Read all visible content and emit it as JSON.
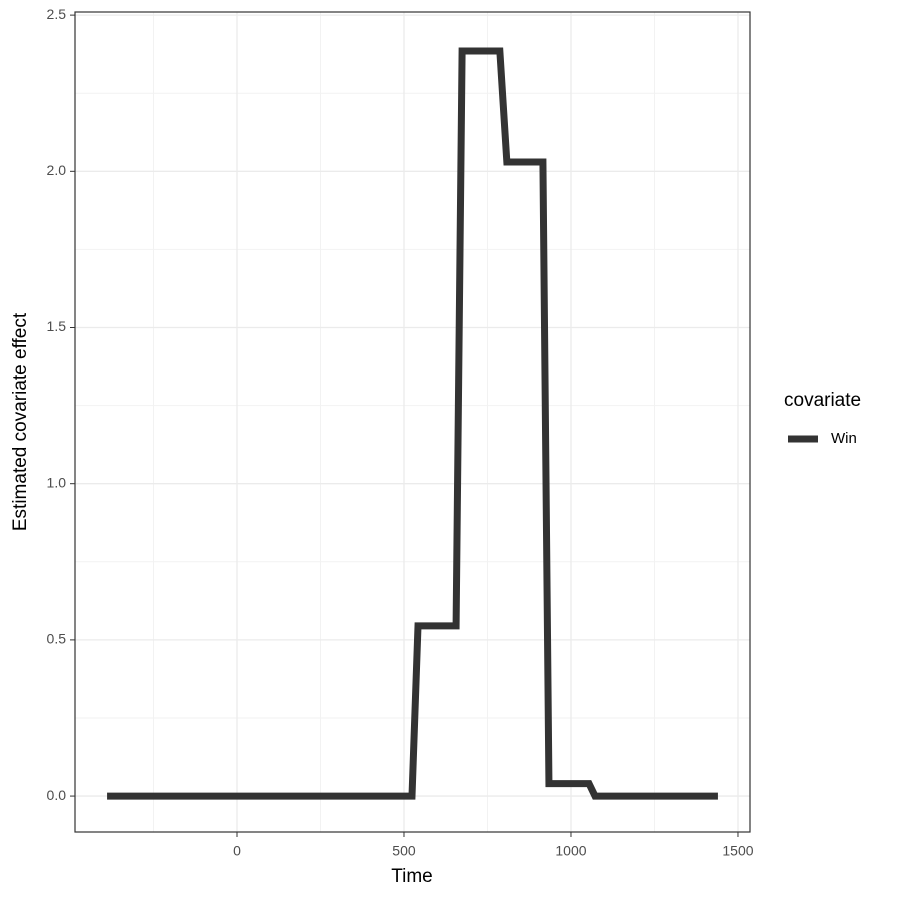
{
  "chart_data": {
    "type": "line",
    "x_label": "Time",
    "y_label": "Estimated covariate effect",
    "x": [
      -389,
      524,
      542,
      656,
      674,
      787,
      808,
      916,
      934,
      1054,
      1072,
      1440
    ],
    "series": [
      {
        "name": "Win",
        "color": "#333333",
        "values": [
          0,
          0,
          0.545,
          0.545,
          2.385,
          2.385,
          2.03,
          2.03,
          0.04,
          0.04,
          0,
          0
        ]
      }
    ],
    "xlim": [
      -485,
      1536
    ],
    "ylim": [
      -0.115,
      2.51
    ],
    "xticks": [
      0,
      500,
      1000,
      1500
    ],
    "yticks": [
      {
        "value": 0,
        "label": "0.0"
      },
      0.5,
      {
        "value": 1,
        "label": "1.0"
      },
      1.5,
      {
        "value": 2,
        "label": "2.0"
      },
      2.5
    ],
    "grid": true,
    "legend_title": "covariate",
    "legend_position": "right"
  }
}
